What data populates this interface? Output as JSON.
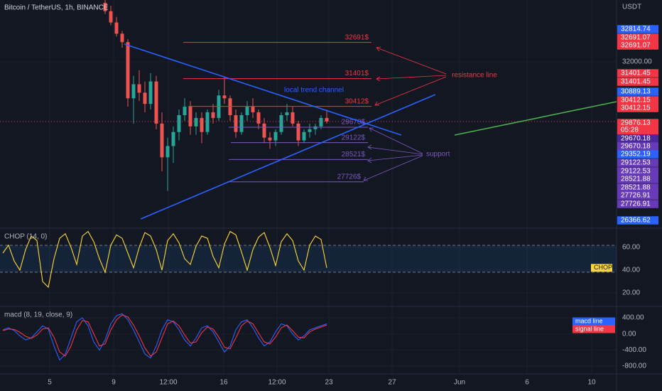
{
  "header": {
    "title": "Bitcoin / TetherUS, 1h, BINANCE",
    "currency": "USDT",
    "countdown": "05:28"
  },
  "time_axis": [
    "5",
    "9",
    "12:00",
    "16",
    "12:00",
    "23",
    "27",
    "Jun",
    "6",
    "10"
  ],
  "notes": [
    "resistance line",
    "support",
    "local trend channel"
  ],
  "chart_data": [
    {
      "type": "candlestick",
      "ylim": [
        26100,
        34200
      ],
      "yticks": [
        {
          "value": 32000,
          "label": "32000.00"
        }
      ],
      "up_color": "#26a69a",
      "down_color": "#ef5350",
      "last_price": 29876.13,
      "open": [
        34100,
        33800,
        33400,
        33000,
        32700,
        30700,
        31200,
        30900,
        30500,
        31300,
        29800,
        28600,
        29000,
        29500,
        30100,
        30400,
        29700,
        30000,
        29500,
        30200,
        30000,
        30800,
        30700,
        30100,
        29500,
        30100,
        30400,
        30200,
        29800,
        29300,
        29200,
        29500,
        30100,
        30200,
        29800,
        29200,
        29500,
        29600,
        29700,
        30000
      ],
      "high": [
        34250,
        34000,
        33600,
        33100,
        32800,
        31500,
        31700,
        31300,
        31600,
        31500,
        30200,
        29300,
        29700,
        30300,
        30700,
        30600,
        30200,
        30200,
        30300,
        30500,
        31000,
        31450,
        30800,
        30300,
        30200,
        30600,
        30700,
        30300,
        30000,
        29500,
        29600,
        30200,
        30500,
        30400,
        29900,
        29600,
        29800,
        29800,
        30100,
        30300
      ],
      "low": [
        33700,
        33300,
        32900,
        32500,
        30400,
        29800,
        30600,
        30200,
        30300,
        29600,
        28100,
        27400,
        28400,
        29200,
        29900,
        29400,
        29400,
        29100,
        29400,
        29800,
        29900,
        30500,
        29900,
        29300,
        29400,
        29900,
        30000,
        29600,
        29100,
        28900,
        29000,
        29400,
        29900,
        29700,
        29000,
        29100,
        29300,
        29400,
        29600,
        29800
      ],
      "close": [
        33800,
        33400,
        33000,
        32700,
        30700,
        31200,
        30900,
        30500,
        31300,
        29800,
        28600,
        29000,
        29500,
        30100,
        30400,
        29700,
        30000,
        29500,
        30200,
        30000,
        30800,
        30700,
        30100,
        29500,
        30100,
        30400,
        30200,
        29800,
        29300,
        29200,
        29500,
        30100,
        30200,
        29800,
        29200,
        29500,
        29600,
        29700,
        30000,
        29876.13
      ],
      "annotations": [
        {
          "text": "32691$",
          "value": 32691,
          "color": "#f23645"
        },
        {
          "text": "31401$",
          "value": 31401,
          "color": "#f23645"
        },
        {
          "text": "30412$",
          "value": 30412,
          "color": "#f23645"
        },
        {
          "text": "29670$",
          "value": 29670,
          "color": "#7e57c2"
        },
        {
          "text": "29122$",
          "value": 29122,
          "color": "#7e57c2"
        },
        {
          "text": "28521$",
          "value": 28521,
          "color": "#7e57c2"
        },
        {
          "text": "27726$",
          "value": 27726,
          "color": "#7e57c2"
        }
      ],
      "price_labels": [
        {
          "value": 32814.74,
          "color": "#2962ff"
        },
        {
          "value": 32691.07,
          "color": "#f23645"
        },
        {
          "value": 32691.07,
          "color": "#f23645"
        },
        {
          "value": 31401.45,
          "color": "#f23645"
        },
        {
          "value": 31401.45,
          "color": "#f23645"
        },
        {
          "value": 30889.13,
          "color": "#2962ff"
        },
        {
          "value": 30412.15,
          "color": "#f23645"
        },
        {
          "value": 30412.15,
          "color": "#f23645"
        },
        {
          "value": 29876.13,
          "color": "#f23645"
        },
        {
          "value": 29670.18,
          "color": "#4a2a9a"
        },
        {
          "value": 29670.18,
          "color": "#673ab7"
        },
        {
          "value": 29352.19,
          "color": "#2962ff"
        },
        {
          "value": 29122.53,
          "color": "#673ab7"
        },
        {
          "value": 29122.53,
          "color": "#673ab7"
        },
        {
          "value": 28521.88,
          "color": "#673ab7"
        },
        {
          "value": 28521.88,
          "color": "#673ab7"
        },
        {
          "value": 27726.91,
          "color": "#673ab7"
        },
        {
          "value": 27726.91,
          "color": "#673ab7"
        },
        {
          "value": 26366.62,
          "color": "#2962ff"
        }
      ]
    },
    {
      "type": "line",
      "title": "CHOP (14, 0)",
      "ylim": [
        8.75,
        76.25
      ],
      "band": [
        61.8,
        38.2
      ],
      "yticks": [
        {
          "value": 60,
          "label": "60.00"
        },
        {
          "value": 40,
          "label": "40.00"
        },
        {
          "value": 20,
          "label": "20.00"
        }
      ],
      "series": [
        {
          "name": "CHOP",
          "color": "#fdd835",
          "values": [
            55,
            62,
            48,
            40,
            58,
            70,
            66,
            30,
            25,
            50,
            68,
            72,
            60,
            45,
            70,
            74,
            65,
            50,
            38,
            62,
            71,
            68,
            55,
            42,
            60,
            73,
            70,
            58,
            40,
            66,
            72,
            64,
            50,
            45,
            61,
            70,
            68,
            52,
            42,
            63,
            74,
            71,
            56,
            40,
            58,
            69,
            73,
            60,
            44,
            65,
            72,
            66,
            48,
            40,
            62,
            70,
            67,
            42
          ]
        }
      ]
    },
    {
      "type": "line",
      "title": "macd (8, 19, close, 9)",
      "ylim": [
        -976,
        664
      ],
      "legend": "right",
      "yticks": [
        {
          "value": 400,
          "label": "400.00"
        },
        {
          "value": 0,
          "label": "0.00"
        },
        {
          "value": -400,
          "label": "-400.00"
        },
        {
          "value": -800,
          "label": "-800.00"
        }
      ],
      "series": [
        {
          "name": "macd line",
          "color": "#2962ff",
          "values": [
            100,
            150,
            80,
            -50,
            -150,
            -100,
            50,
            200,
            120,
            -300,
            -650,
            -500,
            -100,
            300,
            400,
            200,
            -200,
            -400,
            -150,
            250,
            450,
            500,
            350,
            100,
            -200,
            -500,
            -600,
            -300,
            100,
            350,
            300,
            100,
            -150,
            -300,
            -100,
            150,
            200,
            50,
            -200,
            -450,
            -300,
            100,
            300,
            350,
            150,
            -100,
            -300,
            -200,
            50,
            250,
            200,
            0,
            -150,
            -50,
            100,
            150,
            200,
            250
          ]
        },
        {
          "name": "signal line",
          "color": "#f23645",
          "values": [
            80,
            120,
            110,
            40,
            -60,
            -110,
            -30,
            120,
            150,
            -80,
            -450,
            -550,
            -300,
            100,
            330,
            300,
            0,
            -300,
            -250,
            100,
            350,
            470,
            420,
            220,
            -50,
            -350,
            -550,
            -450,
            -100,
            250,
            320,
            200,
            -30,
            -230,
            -200,
            30,
            170,
            120,
            -80,
            -330,
            -370,
            -100,
            200,
            320,
            250,
            20,
            -200,
            -250,
            -80,
            150,
            220,
            80,
            -80,
            -100,
            50,
            120,
            170,
            220
          ]
        }
      ]
    }
  ]
}
